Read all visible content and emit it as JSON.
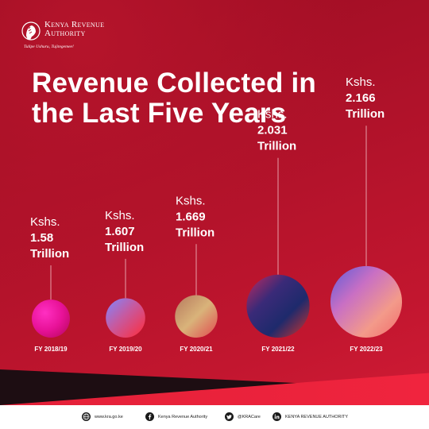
{
  "brand": {
    "name_line1": "Kenya Revenue",
    "name_line2": "Authority",
    "tagline": "Tulipe Ushuru, Tujitegemee!"
  },
  "title_line1": "Revenue Collected in",
  "title_line2": "the Last Five Years",
  "chart_data": {
    "type": "bubble",
    "title": "Revenue Collected in the Last Five Years",
    "categories": [
      "FY 2018/19",
      "FY 2019/20",
      "FY 2020/21",
      "FY 2021/22",
      "FY 2022/23"
    ],
    "values": [
      1.58,
      1.607,
      1.669,
      2.031,
      2.166
    ],
    "value_prefix": "Kshs.",
    "value_unit": "Trillion",
    "value_labels": [
      "1.58",
      "1.607",
      "1.669",
      "2.031",
      "2.166"
    ],
    "legend": "none",
    "grid": false
  },
  "footer": {
    "website": "www.kra.go.ke",
    "facebook": "Kenya Revenue Authority",
    "twitter": "@KRACare",
    "linkedin": "KENYA REVENUE AUTHORITY"
  },
  "colors": {
    "background": "#b0122a",
    "accent_band": "#e32038",
    "dark_band": "#1d0d12"
  },
  "icons": [
    "globe-icon",
    "facebook-icon",
    "twitter-icon",
    "linkedin-icon"
  ]
}
